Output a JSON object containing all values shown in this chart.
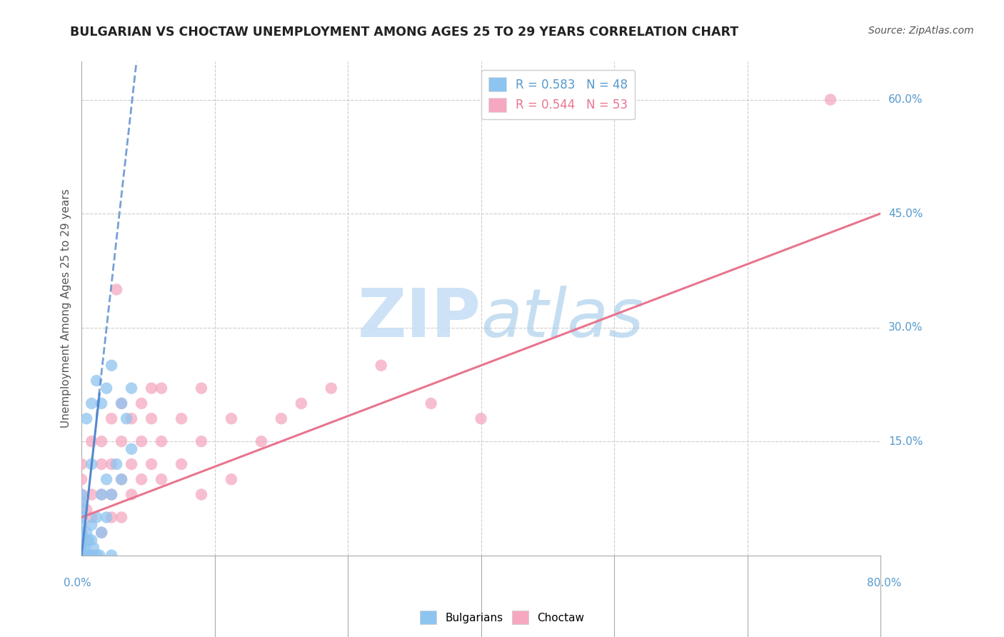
{
  "title": "BULGARIAN VS CHOCTAW UNEMPLOYMENT AMONG AGES 25 TO 29 YEARS CORRELATION CHART",
  "source": "Source: ZipAtlas.com",
  "ylabel": "Unemployment Among Ages 25 to 29 years",
  "xlim": [
    0.0,
    80.0
  ],
  "ylim": [
    0.0,
    65.0
  ],
  "legend_bulgarian": "R = 0.583   N = 48",
  "legend_choctaw": "R = 0.544   N = 53",
  "bulgarian_color": "#8ec4f0",
  "choctaw_color": "#f5a8c0",
  "bulgarian_line_color": "#5588cc",
  "choctaw_line_color": "#e8758f",
  "axis_label_color": "#5599cc",
  "title_color": "#222222",
  "grid_color": "#cccccc",
  "watermark_color": "#c8dff5",
  "ytick_positions": [
    15.0,
    30.0,
    45.0,
    60.0
  ],
  "ytick_labels": [
    "15.0%",
    "30.0%",
    "45.0%",
    "60.0%"
  ],
  "xtick_left_label": "0.0%",
  "xtick_right_label": "80.0%",
  "bulgarian_reg": [
    0.0,
    0.0,
    5.5,
    65.0
  ],
  "choctaw_reg": [
    0.0,
    5.0,
    80.0,
    45.0
  ],
  "bulgarian_points": [
    [
      0.0,
      0.0
    ],
    [
      0.0,
      0.0
    ],
    [
      0.0,
      0.0
    ],
    [
      0.0,
      0.0
    ],
    [
      0.0,
      0.0
    ],
    [
      0.0,
      0.5
    ],
    [
      0.0,
      1.0
    ],
    [
      0.0,
      1.5
    ],
    [
      0.0,
      2.0
    ],
    [
      0.0,
      2.5
    ],
    [
      0.0,
      3.0
    ],
    [
      0.0,
      4.0
    ],
    [
      0.0,
      5.0
    ],
    [
      0.0,
      6.0
    ],
    [
      0.0,
      7.0
    ],
    [
      0.3,
      0.0
    ],
    [
      0.3,
      1.0
    ],
    [
      0.5,
      0.0
    ],
    [
      0.5,
      3.0
    ],
    [
      0.7,
      0.0
    ],
    [
      0.7,
      2.0
    ],
    [
      1.0,
      0.0
    ],
    [
      1.0,
      2.0
    ],
    [
      1.0,
      4.0
    ],
    [
      1.2,
      1.0
    ],
    [
      1.5,
      0.0
    ],
    [
      1.5,
      5.0
    ],
    [
      1.8,
      0.0
    ],
    [
      2.0,
      3.0
    ],
    [
      2.0,
      8.0
    ],
    [
      2.5,
      5.0
    ],
    [
      2.5,
      10.0
    ],
    [
      3.0,
      0.0
    ],
    [
      3.0,
      8.0
    ],
    [
      3.5,
      12.0
    ],
    [
      4.0,
      10.0
    ],
    [
      4.5,
      18.0
    ],
    [
      5.0,
      14.0
    ],
    [
      5.0,
      22.0
    ],
    [
      1.0,
      20.0
    ],
    [
      1.5,
      23.0
    ],
    [
      2.0,
      20.0
    ],
    [
      3.0,
      25.0
    ],
    [
      0.5,
      18.0
    ],
    [
      2.5,
      22.0
    ],
    [
      4.0,
      20.0
    ],
    [
      0.0,
      8.0
    ],
    [
      1.0,
      12.0
    ]
  ],
  "choctaw_points": [
    [
      0.0,
      0.0
    ],
    [
      0.0,
      3.0
    ],
    [
      0.0,
      5.0
    ],
    [
      0.0,
      7.0
    ],
    [
      0.0,
      8.0
    ],
    [
      0.0,
      10.0
    ],
    [
      0.0,
      12.0
    ],
    [
      0.5,
      2.0
    ],
    [
      0.5,
      6.0
    ],
    [
      1.0,
      0.0
    ],
    [
      1.0,
      5.0
    ],
    [
      1.0,
      8.0
    ],
    [
      1.0,
      15.0
    ],
    [
      2.0,
      3.0
    ],
    [
      2.0,
      8.0
    ],
    [
      2.0,
      12.0
    ],
    [
      2.0,
      15.0
    ],
    [
      3.0,
      5.0
    ],
    [
      3.0,
      8.0
    ],
    [
      3.0,
      12.0
    ],
    [
      3.0,
      18.0
    ],
    [
      3.5,
      35.0
    ],
    [
      4.0,
      5.0
    ],
    [
      4.0,
      10.0
    ],
    [
      4.0,
      15.0
    ],
    [
      4.0,
      20.0
    ],
    [
      5.0,
      8.0
    ],
    [
      5.0,
      12.0
    ],
    [
      5.0,
      18.0
    ],
    [
      6.0,
      10.0
    ],
    [
      6.0,
      15.0
    ],
    [
      6.0,
      20.0
    ],
    [
      7.0,
      12.0
    ],
    [
      7.0,
      18.0
    ],
    [
      7.0,
      22.0
    ],
    [
      8.0,
      10.0
    ],
    [
      8.0,
      15.0
    ],
    [
      8.0,
      22.0
    ],
    [
      10.0,
      12.0
    ],
    [
      10.0,
      18.0
    ],
    [
      12.0,
      8.0
    ],
    [
      12.0,
      15.0
    ],
    [
      12.0,
      22.0
    ],
    [
      15.0,
      10.0
    ],
    [
      15.0,
      18.0
    ],
    [
      18.0,
      15.0
    ],
    [
      20.0,
      18.0
    ],
    [
      22.0,
      20.0
    ],
    [
      25.0,
      22.0
    ],
    [
      30.0,
      25.0
    ],
    [
      35.0,
      20.0
    ],
    [
      40.0,
      18.0
    ],
    [
      75.0,
      60.0
    ]
  ]
}
